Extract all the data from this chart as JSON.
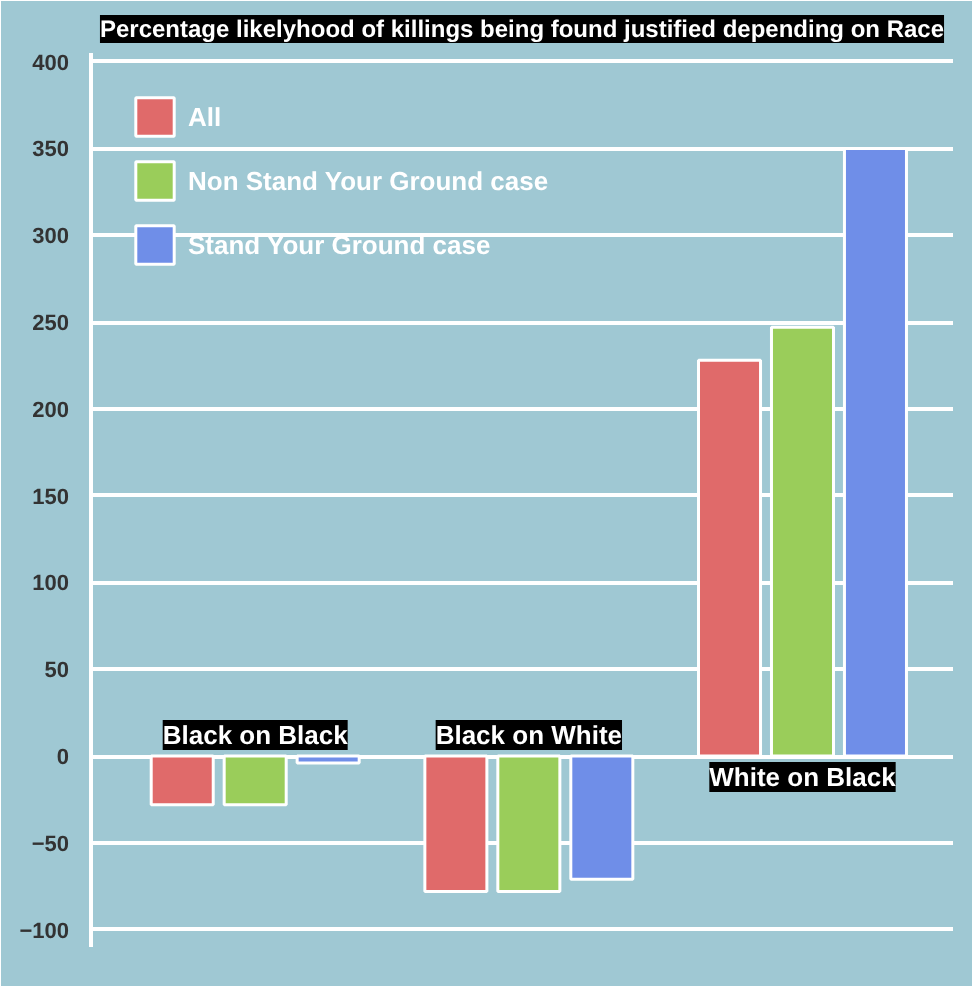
{
  "chart_data": {
    "type": "bar",
    "title": "Percentage likelyhood of killings being found justified depending on Race",
    "categories": [
      "Black on Black",
      "Black on White",
      "White on Black"
    ],
    "series": [
      {
        "name": "All",
        "color": "#e06a6a",
        "values": [
          -28,
          -78,
          228
        ]
      },
      {
        "name": "Non Stand Your Ground case",
        "color": "#9acd5a",
        "values": [
          -28,
          -78,
          247
        ]
      },
      {
        "name": "Stand Your Ground case",
        "color": "#6f8ee8",
        "values": [
          -4,
          -71,
          350
        ]
      }
    ],
    "ylim": [
      -110,
      405
    ],
    "yticks": [
      -100,
      -50,
      0,
      50,
      100,
      150,
      200,
      250,
      300,
      350,
      400
    ],
    "grid": "y",
    "legend": "top left"
  }
}
